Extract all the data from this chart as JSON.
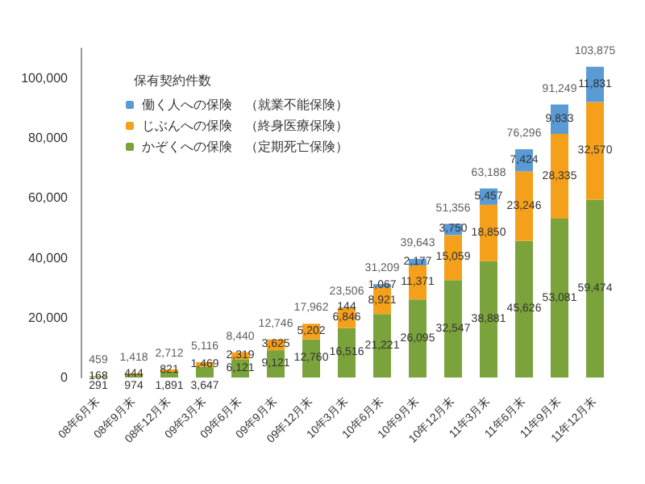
{
  "chart_data": {
    "type": "bar",
    "stacked": true,
    "legend_title": "保有契約件数",
    "legend": "top left",
    "grid": false,
    "categories": [
      "08年6月末",
      "08年9月末",
      "08年12月末",
      "09年3月末",
      "09年6月末",
      "09年9月末",
      "09年12月末",
      "10年3月末",
      "10年6月末",
      "10年9月末",
      "10年12月末",
      "11年3月末",
      "11年6月末",
      "11年9月末",
      "11年12月末"
    ],
    "series": [
      {
        "name": "かぞくへの保険　（定期死亡保険）",
        "color": "#7ba33b",
        "values": [
          291,
          974,
          1891,
          3647,
          6121,
          9121,
          12760,
          16516,
          21221,
          26095,
          32547,
          38881,
          45626,
          53081,
          59474
        ],
        "value_labels": [
          "291",
          "974",
          "1,891",
          "3,647",
          "6,121",
          "9,121",
          "12,760",
          "16,516",
          "21,221",
          "26,095",
          "32,547",
          "38,881",
          "45,626",
          "53,081",
          "59,474"
        ]
      },
      {
        "name": "じぶんへの保険　（終身医療保険）",
        "color": "#f5a01a",
        "values": [
          168,
          444,
          821,
          1469,
          2319,
          3625,
          5202,
          6846,
          8921,
          11371,
          15059,
          18850,
          23246,
          28335,
          32570
        ],
        "value_labels": [
          "168",
          "444",
          "821",
          "1,469",
          "2,319",
          "3,625",
          "5,202",
          "6,846",
          "8,921",
          "11,371",
          "15,059",
          "18,850",
          "23,246",
          "28,335",
          "32,570"
        ]
      },
      {
        "name": "働く人への保険　（就業不能保険）",
        "color": "#5b9bd5",
        "values": [
          null,
          null,
          null,
          null,
          null,
          null,
          null,
          144,
          1067,
          2177,
          3750,
          5457,
          7424,
          9833,
          11831
        ],
        "value_labels": [
          null,
          null,
          null,
          null,
          null,
          null,
          null,
          "144",
          "1,067",
          "2,177",
          "3,750",
          "5,457",
          "7,424",
          "9,833",
          "11,831"
        ]
      }
    ],
    "totals": [
      "459",
      "1,418",
      "2,712",
      "5,116",
      "8,440",
      "12,746",
      "17,962",
      "23,506",
      "31,209",
      "39,643",
      "51,356",
      "63,188",
      "76,296",
      "91,249",
      "103,875"
    ],
    "ylim": [
      0,
      110000
    ],
    "yticks": [
      0,
      {
        "value": 20000,
        "label": "20,000"
      },
      {
        "value": 40000,
        "label": "40,000"
      },
      {
        "value": 60000,
        "label": "60,000"
      },
      {
        "value": 80000,
        "label": "80,000"
      },
      {
        "value": 100000,
        "label": "100,000"
      }
    ]
  }
}
